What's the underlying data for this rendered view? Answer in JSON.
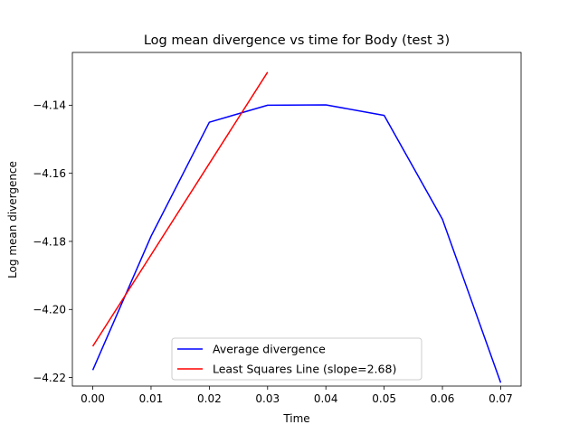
{
  "chart_data": {
    "type": "line",
    "title": "Log mean divergence vs time for Body (test 3)",
    "xlabel": "Time",
    "ylabel": "Log mean divergence",
    "xlim": [
      -0.0035,
      0.0735
    ],
    "ylim": [
      -4.2225,
      -4.1245
    ],
    "xticks": [
      0.0,
      0.01,
      0.02,
      0.03,
      0.04,
      0.05,
      0.06,
      0.07
    ],
    "xtick_labels": [
      "0.00",
      "0.01",
      "0.02",
      "0.03",
      "0.04",
      "0.05",
      "0.06",
      "0.07"
    ],
    "yticks": [
      -4.22,
      -4.2,
      -4.18,
      -4.16,
      -4.14
    ],
    "ytick_labels": [
      "−4.22",
      "−4.20",
      "−4.18",
      "−4.16",
      "−4.14"
    ],
    "grid": false,
    "legend": {
      "placement": "bottom-center"
    },
    "series": [
      {
        "name": "Average divergence",
        "color": "#0000ff",
        "x": [
          0.0,
          0.01,
          0.02,
          0.03,
          0.04,
          0.05,
          0.06,
          0.07
        ],
        "y": [
          -4.2178,
          -4.1785,
          -4.145,
          -4.14,
          -4.1399,
          -4.143,
          -4.1735,
          -4.2215
        ]
      },
      {
        "name": "Least Squares Line (slope=2.68)",
        "color": "#ff0000",
        "x": [
          0.0,
          0.03
        ],
        "y": [
          -4.2108,
          -4.1303
        ]
      }
    ]
  }
}
